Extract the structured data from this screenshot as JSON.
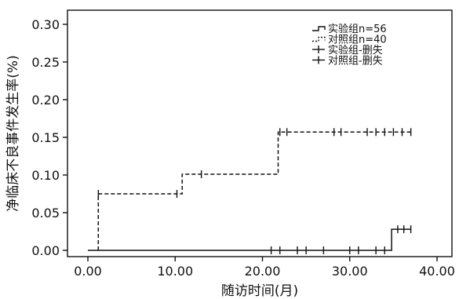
{
  "chart_data": {
    "type": "line",
    "step": true,
    "title": "",
    "xlabel": "随访时间(月)",
    "ylabel": "净临床不良事件发生率(%)",
    "xlim": [
      0,
      40
    ],
    "ylim": [
      0,
      0.3
    ],
    "x_ticks": [
      "0.00",
      "10.00",
      "20.00",
      "30.00",
      "40.00"
    ],
    "y_ticks": [
      "0.00",
      "0.05",
      "0.10",
      "0.15",
      "0.20",
      "0.25",
      "0.30"
    ],
    "grid": false,
    "legend_position": "top-right",
    "legend": [
      "实验组n=56",
      "对照组n=40",
      "实验组-删失",
      "对照组-删失"
    ],
    "series": [
      {
        "name": "实验组n=56",
        "line_style": "solid",
        "x": [
          0,
          34.8,
          34.8,
          37
        ],
        "y": [
          0,
          0,
          0.028,
          0.028
        ],
        "censored": [
          {
            "x": 21,
            "y": 0
          },
          {
            "x": 22,
            "y": 0
          },
          {
            "x": 24,
            "y": 0
          },
          {
            "x": 25,
            "y": 0
          },
          {
            "x": 27,
            "y": 0
          },
          {
            "x": 30,
            "y": 0
          },
          {
            "x": 31,
            "y": 0
          },
          {
            "x": 33,
            "y": 0
          },
          {
            "x": 34,
            "y": 0
          },
          {
            "x": 35.5,
            "y": 0.028
          },
          {
            "x": 36.2,
            "y": 0.028
          },
          {
            "x": 37,
            "y": 0.028
          }
        ]
      },
      {
        "name": "对照组n=40",
        "line_style": "dashed",
        "x": [
          1.2,
          1.2,
          10.8,
          10.8,
          21.8,
          21.8,
          37
        ],
        "y": [
          0,
          0.075,
          0.075,
          0.101,
          0.101,
          0.157,
          0.157
        ],
        "censored": [
          {
            "x": 1.2,
            "y": 0.075
          },
          {
            "x": 10.2,
            "y": 0.075
          },
          {
            "x": 13,
            "y": 0.101
          },
          {
            "x": 22,
            "y": 0.157
          },
          {
            "x": 22.8,
            "y": 0.157
          },
          {
            "x": 28.2,
            "y": 0.157
          },
          {
            "x": 29,
            "y": 0.157
          },
          {
            "x": 32,
            "y": 0.157
          },
          {
            "x": 33,
            "y": 0.157
          },
          {
            "x": 34,
            "y": 0.157
          },
          {
            "x": 35,
            "y": 0.157
          },
          {
            "x": 36,
            "y": 0.157
          },
          {
            "x": 37,
            "y": 0.157
          }
        ]
      }
    ]
  }
}
